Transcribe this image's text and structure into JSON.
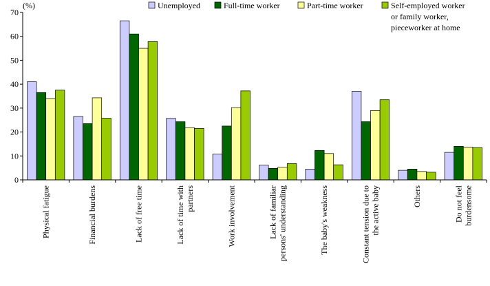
{
  "chart_data": {
    "type": "bar",
    "title": "",
    "xlabel": "",
    "ylabel": "",
    "unit_label": "(%)",
    "ylim": [
      0,
      70
    ],
    "yticks": [
      0,
      10,
      20,
      30,
      40,
      50,
      60,
      70
    ],
    "grid": false,
    "legend_position": "top-right",
    "categories": [
      [
        "Physical fatigue"
      ],
      [
        "Financial burdens"
      ],
      [
        "Lack of free time"
      ],
      [
        "Lack of time with",
        "partners"
      ],
      [
        "Work involvement"
      ],
      [
        "Lack of familiar",
        "persons' understanding"
      ],
      [
        "The baby's weakness"
      ],
      [
        "Constant tension due to",
        "the active baby"
      ],
      [
        "Others"
      ],
      [
        "Do not feel",
        "burdensome"
      ]
    ],
    "series": [
      {
        "name": [
          "Unemployed"
        ],
        "color": "#ccccff",
        "values": [
          41,
          26.5,
          66.5,
          25.7,
          10.8,
          6.2,
          4.5,
          37,
          4,
          11.5
        ]
      },
      {
        "name": [
          "Full-time worker"
        ],
        "color": "#006600",
        "values": [
          36.5,
          23.5,
          61,
          24.3,
          22.5,
          4.8,
          12.3,
          24.3,
          4.5,
          14
        ]
      },
      {
        "name": [
          "Part-time worker"
        ],
        "color": "#ffff99",
        "values": [
          34,
          34.3,
          55,
          21.8,
          30.2,
          5.3,
          11,
          29,
          3.5,
          13.7
        ]
      },
      {
        "name": [
          "Self-employed worker",
          "or family worker,",
          "pieceworker at home"
        ],
        "color": "#99cc00",
        "values": [
          37.5,
          25.8,
          57.8,
          21.5,
          37.2,
          6.8,
          6.3,
          33.5,
          3.2,
          13.5
        ]
      }
    ]
  }
}
